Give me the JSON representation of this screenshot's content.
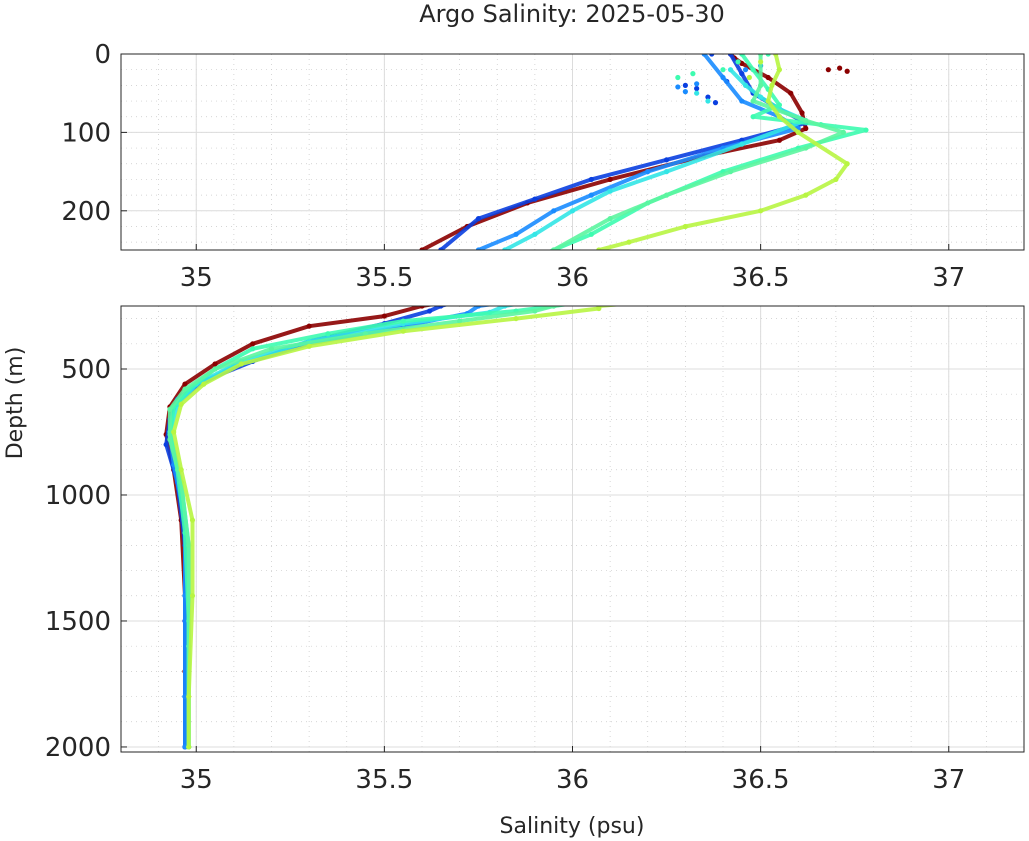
{
  "chart_data": {
    "type": "scatter",
    "title": "Argo Salinity: 2025-05-30",
    "xlabel": "Salinity (psu)",
    "ylabel": "Depth (m)",
    "panels": [
      {
        "name": "upper",
        "xlim": [
          34.8,
          37.2
        ],
        "ylim": [
          0,
          250
        ],
        "y_reversed": true,
        "xticks": [
          35,
          35.5,
          36,
          36.5,
          37
        ],
        "xtick_labels": [
          "35",
          "35.5",
          "36",
          "36.5",
          "37"
        ],
        "yticks": [
          0,
          100,
          200
        ],
        "ytick_labels": [
          "0",
          "100",
          "200"
        ],
        "grid": true,
        "minor_grid": true
      },
      {
        "name": "lower",
        "xlim": [
          34.8,
          37.2
        ],
        "ylim": [
          250,
          2020
        ],
        "y_reversed": true,
        "xticks": [
          35,
          35.5,
          36,
          36.5,
          37
        ],
        "xtick_labels": [
          "35",
          "35.5",
          "36",
          "36.5",
          "37"
        ],
        "yticks": [
          500,
          1000,
          1500,
          2000
        ],
        "ytick_labels": [
          "500",
          "1000",
          "1500",
          "2000"
        ],
        "grid": true,
        "minor_grid": true
      }
    ],
    "series": [
      {
        "name": "profile-darkred",
        "color": "#8b0000",
        "points": [
          [
            36.42,
            0
          ],
          [
            36.43,
            5
          ],
          [
            36.45,
            12
          ],
          [
            36.52,
            30
          ],
          [
            36.58,
            50
          ],
          [
            36.61,
            75
          ],
          [
            36.62,
            95
          ],
          [
            36.55,
            110
          ],
          [
            36.35,
            130
          ],
          [
            36.1,
            160
          ],
          [
            35.88,
            190
          ],
          [
            35.72,
            220
          ],
          [
            35.6,
            250
          ],
          [
            35.5,
            290
          ],
          [
            35.3,
            330
          ],
          [
            35.15,
            400
          ],
          [
            35.05,
            480
          ],
          [
            34.97,
            560
          ],
          [
            34.93,
            650
          ],
          [
            34.92,
            760
          ],
          [
            34.94,
            900
          ],
          [
            34.96,
            1100
          ],
          [
            34.97,
            1400
          ],
          [
            34.97,
            1700
          ],
          [
            34.97,
            2000
          ]
        ],
        "scatter": [
          [
            36.68,
            20
          ],
          [
            36.73,
            22
          ],
          [
            36.71,
            18
          ]
        ]
      },
      {
        "name": "profile-blue",
        "color": "#0a3fe0",
        "points": [
          [
            36.42,
            0
          ],
          [
            36.45,
            25
          ],
          [
            36.48,
            50
          ],
          [
            36.55,
            70
          ],
          [
            36.62,
            88
          ],
          [
            36.45,
            110
          ],
          [
            36.25,
            135
          ],
          [
            36.05,
            160
          ],
          [
            35.9,
            185
          ],
          [
            35.75,
            210
          ],
          [
            35.65,
            250
          ],
          [
            35.62,
            270
          ],
          [
            35.5,
            320
          ],
          [
            35.3,
            390
          ],
          [
            35.15,
            470
          ],
          [
            35.0,
            560
          ],
          [
            34.95,
            620
          ],
          [
            34.93,
            700
          ],
          [
            34.92,
            800
          ],
          [
            34.95,
            950
          ],
          [
            34.97,
            1200
          ],
          [
            34.97,
            1500
          ],
          [
            34.97,
            1800
          ],
          [
            34.97,
            2000
          ]
        ],
        "scatter": [
          [
            36.3,
            40
          ],
          [
            36.33,
            44
          ],
          [
            36.36,
            55
          ],
          [
            36.38,
            62
          ],
          [
            36.41,
            35
          ],
          [
            36.37,
            0
          ]
        ]
      },
      {
        "name": "profile-azure",
        "color": "#1a8cff",
        "points": [
          [
            36.35,
            0
          ],
          [
            36.4,
            30
          ],
          [
            36.45,
            60
          ],
          [
            36.55,
            80
          ],
          [
            36.6,
            95
          ],
          [
            36.4,
            120
          ],
          [
            36.2,
            150
          ],
          [
            36.05,
            180
          ],
          [
            35.95,
            200
          ],
          [
            35.85,
            230
          ],
          [
            35.75,
            250
          ],
          [
            35.72,
            280
          ],
          [
            35.55,
            330
          ],
          [
            35.3,
            400
          ],
          [
            35.1,
            490
          ],
          [
            35.0,
            570
          ],
          [
            34.94,
            650
          ],
          [
            34.93,
            750
          ],
          [
            34.94,
            880
          ],
          [
            34.97,
            1100
          ],
          [
            34.97,
            1400
          ],
          [
            34.97,
            1800
          ],
          [
            34.97,
            2000
          ]
        ],
        "scatter": [
          [
            36.28,
            42
          ],
          [
            36.3,
            48
          ],
          [
            36.33,
            38
          ],
          [
            36.46,
            20
          ],
          [
            36.5,
            15
          ]
        ]
      },
      {
        "name": "profile-cyan",
        "color": "#33e6e6",
        "points": [
          [
            36.42,
            20
          ],
          [
            36.46,
            40
          ],
          [
            36.5,
            55
          ],
          [
            36.55,
            70
          ],
          [
            36.62,
            85
          ],
          [
            36.45,
            115
          ],
          [
            36.25,
            150
          ],
          [
            36.1,
            175
          ],
          [
            36.0,
            200
          ],
          [
            35.9,
            230
          ],
          [
            35.82,
            250
          ],
          [
            35.78,
            275
          ],
          [
            35.55,
            320
          ],
          [
            35.3,
            390
          ],
          [
            35.12,
            470
          ],
          [
            35.0,
            560
          ],
          [
            34.95,
            640
          ],
          [
            34.93,
            750
          ],
          [
            34.96,
            950
          ],
          [
            34.98,
            1200
          ],
          [
            34.98,
            1600
          ],
          [
            34.98,
            2000
          ]
        ],
        "scatter": [
          [
            36.33,
            50
          ],
          [
            36.36,
            60
          ]
        ]
      },
      {
        "name": "profile-aquamarine",
        "color": "#3dfcb0",
        "points": [
          [
            36.45,
            0
          ],
          [
            36.48,
            20
          ],
          [
            36.52,
            45
          ],
          [
            36.55,
            65
          ],
          [
            36.48,
            80
          ],
          [
            36.66,
            90
          ],
          [
            36.78,
            97
          ],
          [
            36.6,
            120
          ],
          [
            36.4,
            150
          ],
          [
            36.2,
            190
          ],
          [
            36.05,
            230
          ],
          [
            35.95,
            250
          ],
          [
            35.85,
            270
          ],
          [
            35.55,
            310
          ],
          [
            35.35,
            360
          ],
          [
            35.15,
            420
          ],
          [
            35.05,
            500
          ],
          [
            34.98,
            580
          ],
          [
            34.94,
            650
          ],
          [
            34.93,
            760
          ],
          [
            34.95,
            900
          ],
          [
            34.97,
            1150
          ],
          [
            34.98,
            1500
          ],
          [
            34.98,
            2000
          ]
        ],
        "scatter": [
          [
            36.28,
            30
          ],
          [
            36.32,
            25
          ],
          [
            36.4,
            20
          ],
          [
            36.44,
            10
          ],
          [
            36.52,
            0
          ]
        ]
      },
      {
        "name": "profile-springgreen",
        "color": "#5cf5a0",
        "points": [
          [
            36.5,
            0
          ],
          [
            36.5,
            40
          ],
          [
            36.48,
            60
          ],
          [
            36.62,
            85
          ],
          [
            36.72,
            100
          ],
          [
            36.62,
            120
          ],
          [
            36.42,
            150
          ],
          [
            36.25,
            180
          ],
          [
            36.1,
            210
          ],
          [
            35.95,
            250
          ],
          [
            35.9,
            270
          ],
          [
            35.7,
            310
          ],
          [
            35.45,
            360
          ],
          [
            35.2,
            420
          ],
          [
            35.05,
            500
          ],
          [
            34.97,
            580
          ],
          [
            34.93,
            660
          ],
          [
            34.93,
            780
          ],
          [
            34.96,
            950
          ],
          [
            34.98,
            1200
          ],
          [
            34.98,
            1600
          ],
          [
            34.98,
            2000
          ]
        ],
        "scatter": []
      },
      {
        "name": "profile-yellowgreen",
        "color": "#b8f542",
        "points": [
          [
            36.54,
            0
          ],
          [
            36.55,
            20
          ],
          [
            36.53,
            40
          ],
          [
            36.52,
            60
          ],
          [
            36.55,
            80
          ],
          [
            36.6,
            100
          ],
          [
            36.73,
            140
          ],
          [
            36.7,
            160
          ],
          [
            36.62,
            180
          ],
          [
            36.5,
            200
          ],
          [
            36.3,
            220
          ],
          [
            36.15,
            240
          ],
          [
            36.07,
            250
          ],
          [
            36.07,
            260
          ],
          [
            35.85,
            300
          ],
          [
            35.55,
            350
          ],
          [
            35.3,
            410
          ],
          [
            35.12,
            480
          ],
          [
            35.02,
            560
          ],
          [
            34.96,
            640
          ],
          [
            34.94,
            750
          ],
          [
            34.96,
            900
          ],
          [
            34.99,
            1100
          ],
          [
            34.99,
            1400
          ],
          [
            34.98,
            1800
          ],
          [
            34.98,
            2000
          ]
        ],
        "scatter": [
          [
            36.5,
            10
          ],
          [
            36.47,
            30
          ]
        ]
      }
    ]
  }
}
